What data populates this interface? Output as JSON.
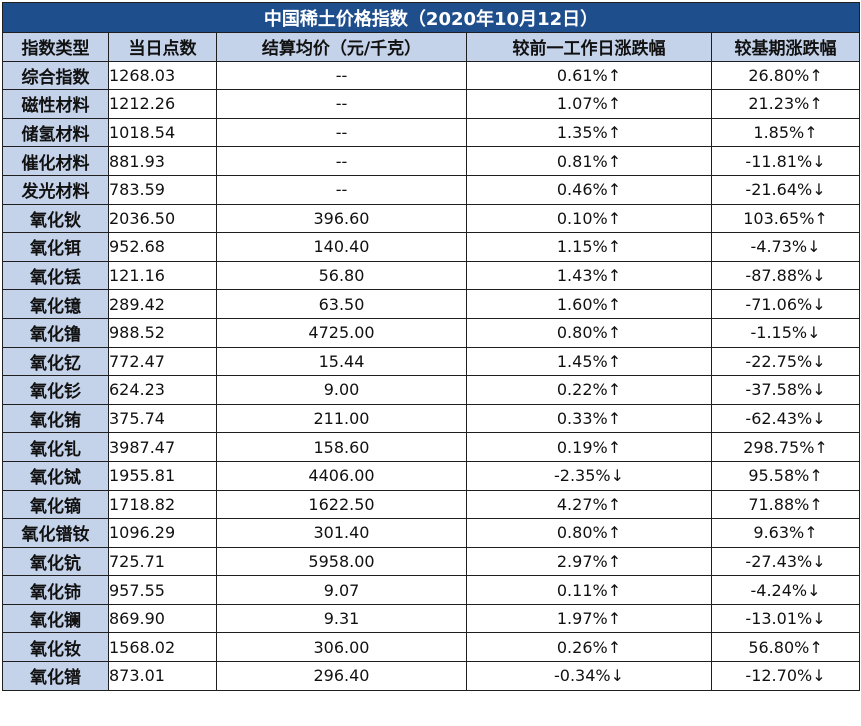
{
  "title": "中国稀土价格指数（2020年10月12日）",
  "headers": [
    "指数类型",
    "当日点数",
    "结算均价（元/千克）",
    "较前一工作日涨跌幅",
    "较基期涨跌幅"
  ],
  "colors": {
    "title_bg": "#1f4e8c",
    "header_bg": "#c5d3ea",
    "up": "#e0141e",
    "down": "#1aa34a"
  },
  "rows": [
    {
      "name": "综合指数",
      "points": "1268.03",
      "price": "--",
      "day_change": "0.61%↑",
      "day_dir": "up",
      "base_change": "26.80%↑",
      "base_dir": "up"
    },
    {
      "name": "磁性材料",
      "points": "1212.26",
      "price": "--",
      "day_change": "1.07%↑",
      "day_dir": "up",
      "base_change": "21.23%↑",
      "base_dir": "up"
    },
    {
      "name": "储氢材料",
      "points": "1018.54",
      "price": "--",
      "day_change": "1.35%↑",
      "day_dir": "up",
      "base_change": "1.85%↑",
      "base_dir": "up"
    },
    {
      "name": "催化材料",
      "points": "881.93",
      "price": "--",
      "day_change": "0.81%↑",
      "day_dir": "up",
      "base_change": "-11.81%↓",
      "base_dir": "down"
    },
    {
      "name": "发光材料",
      "points": "783.59",
      "price": "--",
      "day_change": "0.46%↑",
      "day_dir": "up",
      "base_change": "-21.64%↓",
      "base_dir": "down"
    },
    {
      "name": "氧化钬",
      "points": "2036.50",
      "price": "396.60",
      "day_change": "0.10%↑",
      "day_dir": "up",
      "base_change": "103.65%↑",
      "base_dir": "up"
    },
    {
      "name": "氧化铒",
      "points": "952.68",
      "price": "140.40",
      "day_change": "1.15%↑",
      "day_dir": "up",
      "base_change": "-4.73%↓",
      "base_dir": "down"
    },
    {
      "name": "氧化铥",
      "points": "121.16",
      "price": "56.80",
      "day_change": "1.43%↑",
      "day_dir": "up",
      "base_change": "-87.88%↓",
      "base_dir": "down"
    },
    {
      "name": "氧化镱",
      "points": "289.42",
      "price": "63.50",
      "day_change": "1.60%↑",
      "day_dir": "up",
      "base_change": "-71.06%↓",
      "base_dir": "down"
    },
    {
      "name": "氧化镥",
      "points": "988.52",
      "price": "4725.00",
      "day_change": "0.80%↑",
      "day_dir": "up",
      "base_change": "-1.15%↓",
      "base_dir": "down"
    },
    {
      "name": "氧化钇",
      "points": "772.47",
      "price": "15.44",
      "day_change": "1.45%↑",
      "day_dir": "up",
      "base_change": "-22.75%↓",
      "base_dir": "down"
    },
    {
      "name": "氧化钐",
      "points": "624.23",
      "price": "9.00",
      "day_change": "0.22%↑",
      "day_dir": "up",
      "base_change": "-37.58%↓",
      "base_dir": "down"
    },
    {
      "name": "氧化铕",
      "points": "375.74",
      "price": "211.00",
      "day_change": "0.33%↑",
      "day_dir": "up",
      "base_change": "-62.43%↓",
      "base_dir": "down"
    },
    {
      "name": "氧化钆",
      "points": "3987.47",
      "price": "158.60",
      "day_change": "0.19%↑",
      "day_dir": "up",
      "base_change": "298.75%↑",
      "base_dir": "up"
    },
    {
      "name": "氧化铽",
      "points": "1955.81",
      "price": "4406.00",
      "day_change": "-2.35%↓",
      "day_dir": "down",
      "base_change": "95.58%↑",
      "base_dir": "up"
    },
    {
      "name": "氧化镝",
      "points": "1718.82",
      "price": "1622.50",
      "day_change": "4.27%↑",
      "day_dir": "up",
      "base_change": "71.88%↑",
      "base_dir": "up"
    },
    {
      "name": "氧化镨钕",
      "points": "1096.29",
      "price": "301.40",
      "day_change": "0.80%↑",
      "day_dir": "up",
      "base_change": "9.63%↑",
      "base_dir": "up"
    },
    {
      "name": "氧化钪",
      "points": "725.71",
      "price": "5958.00",
      "day_change": "2.97%↑",
      "day_dir": "up",
      "base_change": "-27.43%↓",
      "base_dir": "down"
    },
    {
      "name": "氧化铈",
      "points": "957.55",
      "price": "9.07",
      "day_change": "0.11%↑",
      "day_dir": "up",
      "base_change": "-4.24%↓",
      "base_dir": "down"
    },
    {
      "name": "氧化镧",
      "points": "869.90",
      "price": "9.31",
      "day_change": "1.97%↑",
      "day_dir": "up",
      "base_change": "-13.01%↓",
      "base_dir": "down"
    },
    {
      "name": "氧化钕",
      "points": "1568.02",
      "price": "306.00",
      "day_change": "0.26%↑",
      "day_dir": "up",
      "base_change": "56.80%↑",
      "base_dir": "up"
    },
    {
      "name": "氧化镨",
      "points": "873.01",
      "price": "296.40",
      "day_change": "-0.34%↓",
      "day_dir": "down",
      "base_change": "-12.70%↓",
      "base_dir": "down"
    }
  ]
}
